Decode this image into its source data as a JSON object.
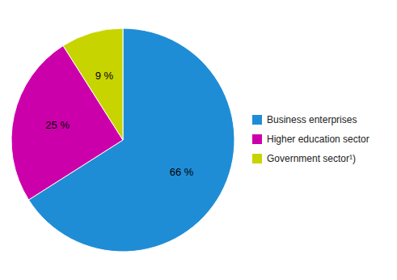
{
  "chart_data": {
    "type": "pie",
    "categories": [
      "Business enterprises",
      "Higher education sector",
      "Government sector¹)"
    ],
    "values": [
      66,
      25,
      9
    ],
    "value_labels": [
      "66 %",
      "25 %",
      "9 %"
    ],
    "colors": [
      "#1f8dd6",
      "#cc00aa",
      "#c8d400"
    ],
    "data_labels": true,
    "legend": "right"
  }
}
